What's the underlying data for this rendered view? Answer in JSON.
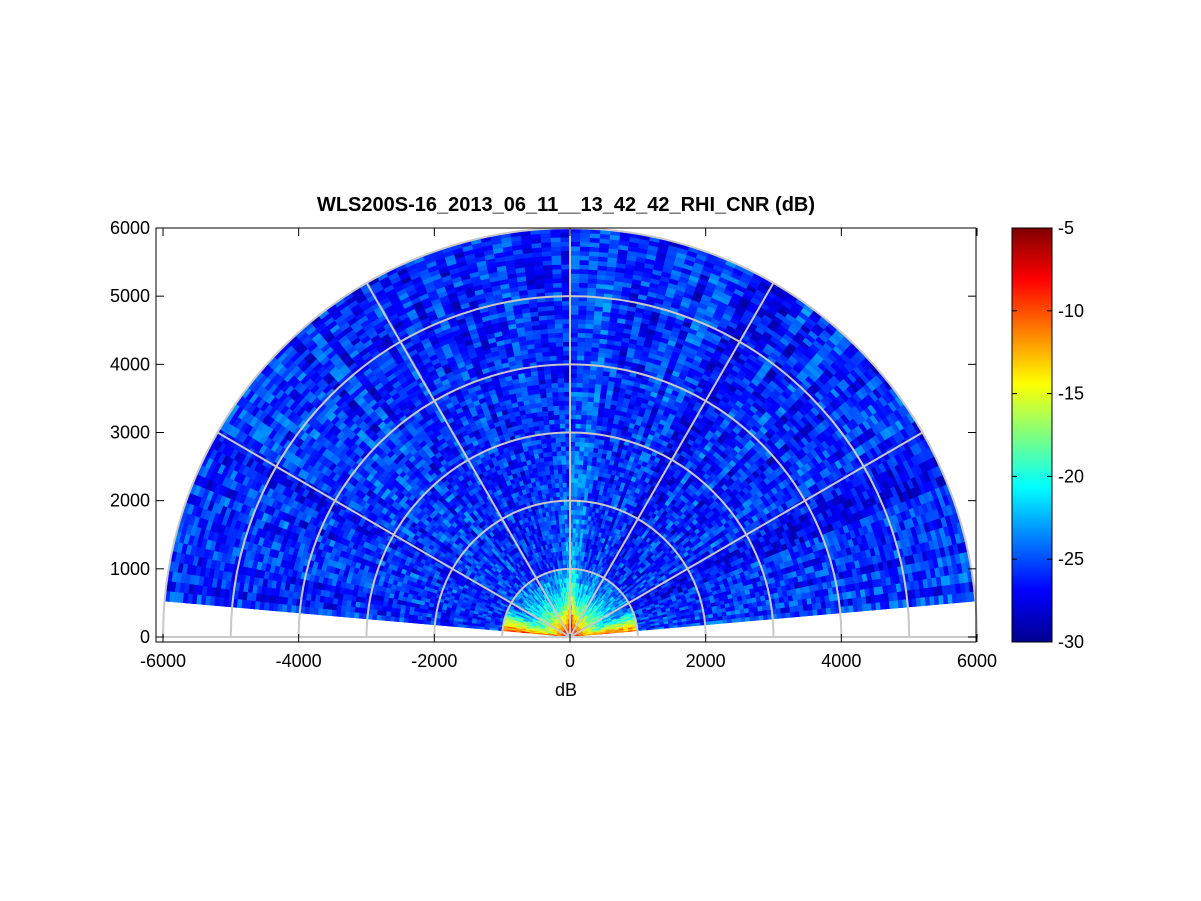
{
  "chart_data": {
    "type": "heatmap",
    "subtype": "polar-sector-rhi",
    "title": "WLS200S-16_2013_06_11__13_42_42_RHI_CNR (dB)",
    "xlabel": "dB",
    "ylabel": "",
    "xlim": [
      -6000,
      6000
    ],
    "ylim": [
      0,
      6000
    ],
    "x_ticks": [
      -6000,
      -4000,
      -2000,
      0,
      2000,
      4000,
      6000
    ],
    "x_tick_labels": [
      "-6000",
      "-4000",
      "-2000",
      "0",
      "2000",
      "4000",
      "6000"
    ],
    "y_ticks": [
      0,
      1000,
      2000,
      3000,
      4000,
      5000,
      6000
    ],
    "y_tick_labels": [
      "0",
      "1000",
      "2000",
      "3000",
      "4000",
      "5000",
      "6000"
    ],
    "max_range": 6000,
    "elevation_range_deg": [
      5,
      175
    ],
    "polar_grid_rings": [
      1000,
      2000,
      3000,
      4000,
      5000,
      6000
    ],
    "polar_grid_spokes_deg": [
      0,
      30,
      60,
      90,
      120,
      150,
      180
    ],
    "grid": true,
    "colormap": "jet",
    "colorbar": {
      "position": "right",
      "clim": [
        -30,
        -5
      ],
      "ticks": [
        -5,
        -10,
        -15,
        -20,
        -25,
        -30
      ],
      "tick_labels": [
        "-5",
        "-10",
        "-15",
        "-20",
        "-25",
        "-30"
      ]
    },
    "value_description": {
      "near_field_0_to_1000": "-5 to -12",
      "near_vertical_beam_0_to_1000": "-15 to -22",
      "far_field_1000_to_6000": "-25 to -30"
    }
  }
}
